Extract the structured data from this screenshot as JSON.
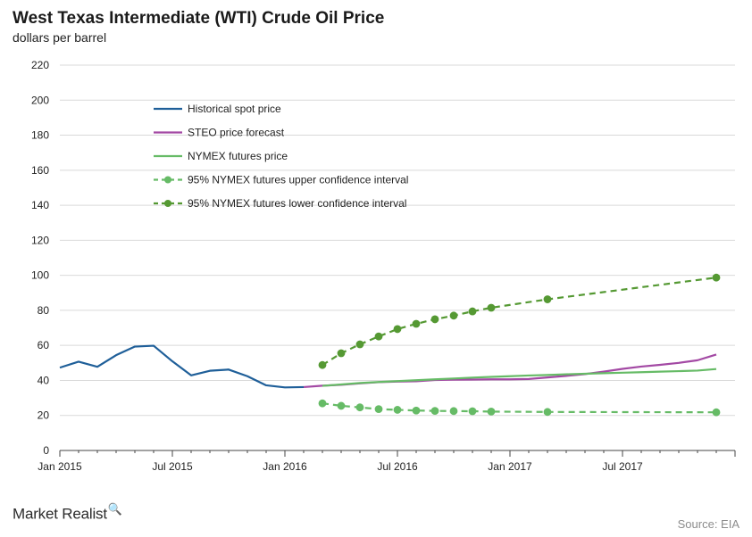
{
  "chart_data": {
    "type": "line",
    "title": "West Texas Intermediate (WTI) Crude Oil Price",
    "subtitle": "dollars per barrel",
    "ylim": [
      0,
      220
    ],
    "yticks": [
      0,
      20,
      40,
      60,
      80,
      100,
      120,
      140,
      160,
      180,
      200,
      220
    ],
    "xlim": [
      "2015-01",
      "2017-12"
    ],
    "xticks": [
      {
        "label": "Jan 2015",
        "month": "2015-01"
      },
      {
        "label": "Jul 2015",
        "month": "2015-07"
      },
      {
        "label": "Jan 2016",
        "month": "2016-01"
      },
      {
        "label": "Jul 2016",
        "month": "2016-07"
      },
      {
        "label": "Jan 2017",
        "month": "2017-01"
      },
      {
        "label": "Jul 2017",
        "month": "2017-07"
      }
    ],
    "grid": true,
    "legend_position": "top-left",
    "series": [
      {
        "name": "Historical spot price",
        "color": "#1f5f99",
        "style": "solid",
        "marker": "none",
        "points": [
          [
            "2015-01",
            47.3
          ],
          [
            "2015-02",
            50.7
          ],
          [
            "2015-03",
            47.8
          ],
          [
            "2015-04",
            54.4
          ],
          [
            "2015-05",
            59.3
          ],
          [
            "2015-06",
            59.8
          ],
          [
            "2015-07",
            50.9
          ],
          [
            "2015-08",
            42.9
          ],
          [
            "2015-09",
            45.5
          ],
          [
            "2015-10",
            46.2
          ],
          [
            "2015-11",
            42.4
          ],
          [
            "2015-12",
            37.2
          ],
          [
            "2016-01",
            36.0
          ],
          [
            "2016-02",
            36.2
          ]
        ]
      },
      {
        "name": "STEO price forecast",
        "color": "#a349a4",
        "style": "solid",
        "marker": "none",
        "points": [
          [
            "2016-02",
            36.2
          ],
          [
            "2016-03",
            37.0
          ],
          [
            "2016-04",
            37.5
          ],
          [
            "2016-05",
            38.3
          ],
          [
            "2016-06",
            39.0
          ],
          [
            "2016-07",
            39.3
          ],
          [
            "2016-08",
            39.5
          ],
          [
            "2016-09",
            40.2
          ],
          [
            "2016-10",
            40.4
          ],
          [
            "2016-11",
            40.5
          ],
          [
            "2016-12",
            40.6
          ],
          [
            "2017-01",
            40.6
          ],
          [
            "2017-02",
            40.8
          ],
          [
            "2017-03",
            41.7
          ],
          [
            "2017-04",
            42.6
          ],
          [
            "2017-05",
            43.6
          ],
          [
            "2017-06",
            45.0
          ],
          [
            "2017-07",
            46.6
          ],
          [
            "2017-08",
            47.9
          ],
          [
            "2017-09",
            48.9
          ],
          [
            "2017-10",
            50.0
          ],
          [
            "2017-11",
            51.5
          ],
          [
            "2017-12",
            54.8
          ]
        ]
      },
      {
        "name": "NYMEX futures price",
        "color": "#66bb66",
        "style": "solid",
        "marker": "none",
        "points": [
          [
            "2016-03",
            36.9
          ],
          [
            "2016-04",
            37.7
          ],
          [
            "2016-05",
            38.5
          ],
          [
            "2016-06",
            39.1
          ],
          [
            "2016-07",
            39.6
          ],
          [
            "2016-08",
            40.1
          ],
          [
            "2016-09",
            40.6
          ],
          [
            "2016-10",
            41.1
          ],
          [
            "2016-11",
            41.6
          ],
          [
            "2016-12",
            42.0
          ],
          [
            "2017-01",
            42.4
          ],
          [
            "2017-02",
            42.8
          ],
          [
            "2017-03",
            43.1
          ],
          [
            "2017-04",
            43.5
          ],
          [
            "2017-05",
            43.8
          ],
          [
            "2017-06",
            44.1
          ],
          [
            "2017-07",
            44.4
          ],
          [
            "2017-08",
            44.7
          ],
          [
            "2017-09",
            45.0
          ],
          [
            "2017-10",
            45.3
          ],
          [
            "2017-11",
            45.6
          ],
          [
            "2017-12",
            46.5
          ]
        ]
      },
      {
        "name": "95% NYMEX futures upper confidence interval",
        "color": "#66bb66",
        "style": "dashed",
        "marker": "circle",
        "points": [
          [
            "2016-03",
            26.9
          ],
          [
            "2016-04",
            25.5
          ],
          [
            "2016-05",
            24.6
          ],
          [
            "2016-06",
            23.6
          ],
          [
            "2016-07",
            23.2
          ],
          [
            "2016-08",
            22.8
          ],
          [
            "2016-09",
            22.6
          ],
          [
            "2016-10",
            22.5
          ],
          [
            "2016-11",
            22.4
          ],
          [
            "2016-12",
            22.2
          ],
          [
            "2017-03",
            22.0
          ],
          [
            "2017-12",
            21.8
          ]
        ]
      },
      {
        "name": "95% NYMEX futures lower confidence interval",
        "color": "#559933",
        "style": "dashed",
        "marker": "circle",
        "points": [
          [
            "2016-03",
            48.8
          ],
          [
            "2016-04",
            55.5
          ],
          [
            "2016-05",
            60.6
          ],
          [
            "2016-06",
            65.1
          ],
          [
            "2016-07",
            69.3
          ],
          [
            "2016-08",
            72.3
          ],
          [
            "2016-09",
            74.9
          ],
          [
            "2016-10",
            77.0
          ],
          [
            "2016-11",
            79.4
          ],
          [
            "2016-12",
            81.5
          ],
          [
            "2017-03",
            86.3
          ],
          [
            "2017-12",
            98.7
          ]
        ]
      }
    ]
  },
  "branding": {
    "name": "Market Realist",
    "icon": "magnifier-chart-icon"
  },
  "source": "Source: EIA"
}
